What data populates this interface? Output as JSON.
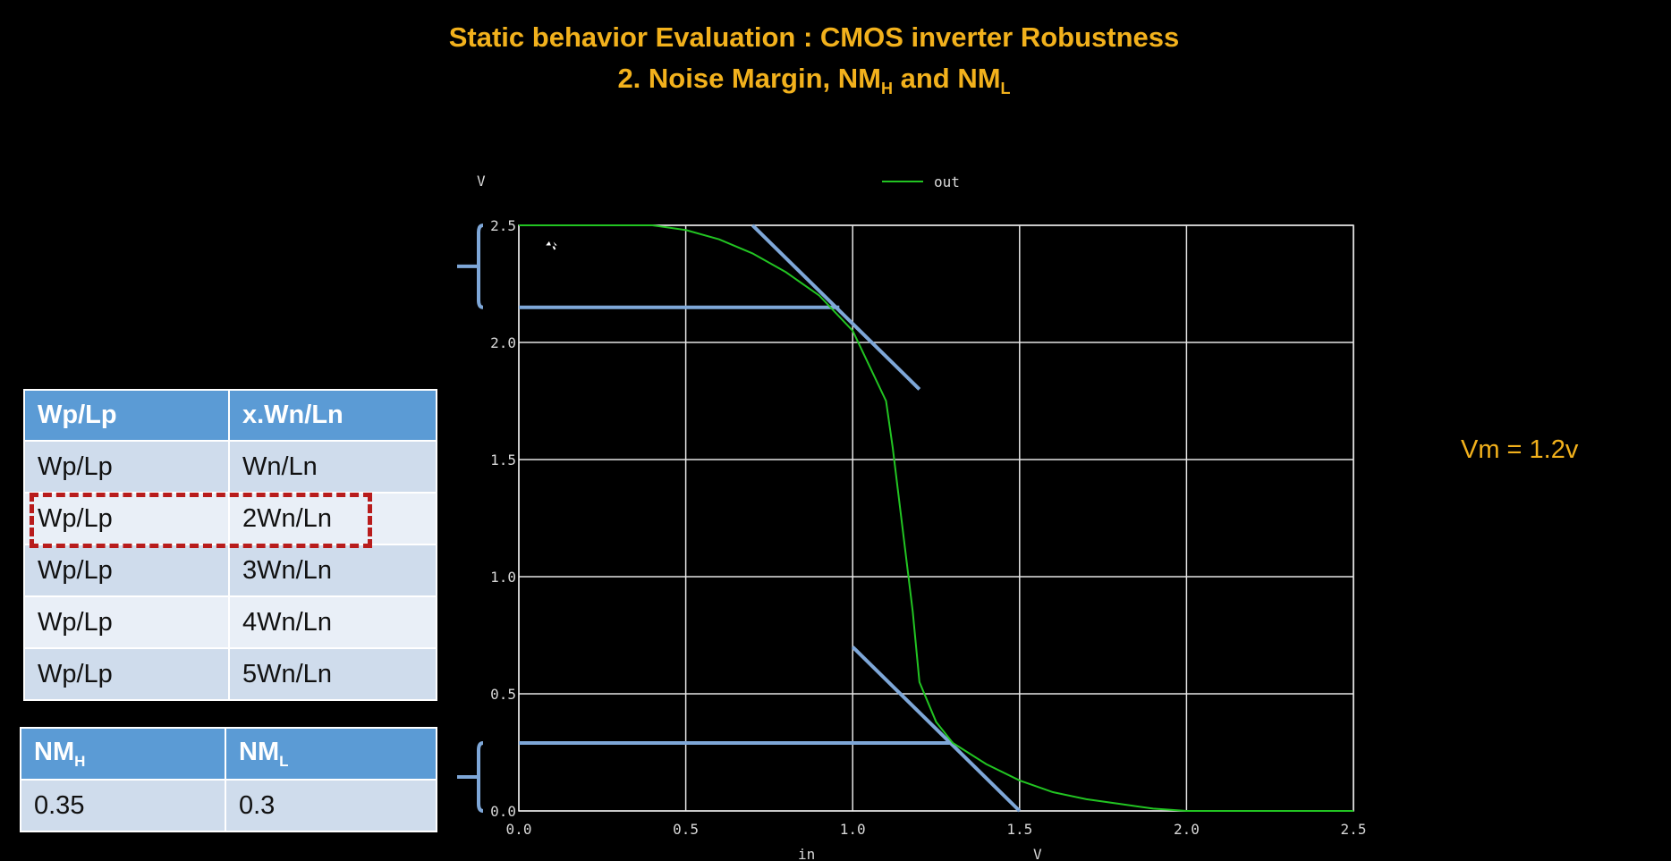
{
  "slide": {
    "title_line1": "Static behavior Evaluation : CMOS inverter Robustness",
    "title_line2_prefix": "2. Noise Margin, NM",
    "title_line2_sub1": "H",
    "title_line2_mid": " and NM",
    "title_line2_sub2": "L",
    "vm_label": "Vm = 1.2v"
  },
  "ratio_table": {
    "headers": [
      "Wp/Lp",
      "x.Wn/Ln"
    ],
    "rows": [
      [
        "Wp/Lp",
        "Wn/Ln"
      ],
      [
        "Wp/Lp",
        "2Wn/Ln"
      ],
      [
        "Wp/Lp",
        "3Wn/Ln"
      ],
      [
        "Wp/Lp",
        "4Wn/Ln"
      ],
      [
        "Wp/Lp",
        "5Wn/Ln"
      ]
    ],
    "highlighted_row": 1,
    "highlight_color": "#b81c1c",
    "header_color": "#5b9bd5"
  },
  "nm_table": {
    "header1_main": "NM",
    "header1_sub": "H",
    "header2_main": "NM",
    "header2_sub": "L",
    "values": [
      "0.35",
      "0.3"
    ]
  },
  "chart_data": {
    "type": "line",
    "xlabel": "in",
    "xunit": "V",
    "ylabel": "V",
    "xlim": [
      0,
      2.5
    ],
    "ylim": [
      0,
      2.5
    ],
    "xticks": [
      "0.0",
      "0.5",
      "1.0",
      "1.5",
      "2.0",
      "2.5"
    ],
    "yticks": [
      "0.0",
      "0.5",
      "1.0",
      "1.5",
      "2.0",
      "2.5"
    ],
    "grid": true,
    "legend_position": "top-center",
    "series": [
      {
        "name": "out",
        "color": "#22c422",
        "x": [
          0,
          0.4,
          0.5,
          0.6,
          0.7,
          0.8,
          0.9,
          1.0,
          1.05,
          1.1,
          1.12,
          1.15,
          1.18,
          1.2,
          1.25,
          1.3,
          1.4,
          1.5,
          1.6,
          1.7,
          1.8,
          1.9,
          2.0,
          2.5
        ],
        "y": [
          2.5,
          2.5,
          2.48,
          2.44,
          2.38,
          2.3,
          2.2,
          2.05,
          1.9,
          1.75,
          1.55,
          1.2,
          0.85,
          0.55,
          0.38,
          0.29,
          0.2,
          0.13,
          0.08,
          0.05,
          0.03,
          0.01,
          0,
          0
        ]
      }
    ],
    "annotation_color": "#7ea7d8",
    "tangent_lines": [
      {
        "x": [
          0.7,
          1.2
        ],
        "y": [
          2.5,
          1.8
        ]
      },
      {
        "x": [
          1.0,
          1.5
        ],
        "y": [
          0.7,
          0
        ]
      }
    ],
    "level_lines": [
      {
        "x": [
          0,
          0.96
        ],
        "y": [
          2.15,
          2.15
        ]
      },
      {
        "x": [
          0,
          1.3
        ],
        "y": [
          0.29,
          0.29
        ]
      }
    ],
    "brackets": [
      {
        "y": [
          2.15,
          2.5
        ]
      },
      {
        "y": [
          0,
          0.29
        ]
      }
    ]
  }
}
